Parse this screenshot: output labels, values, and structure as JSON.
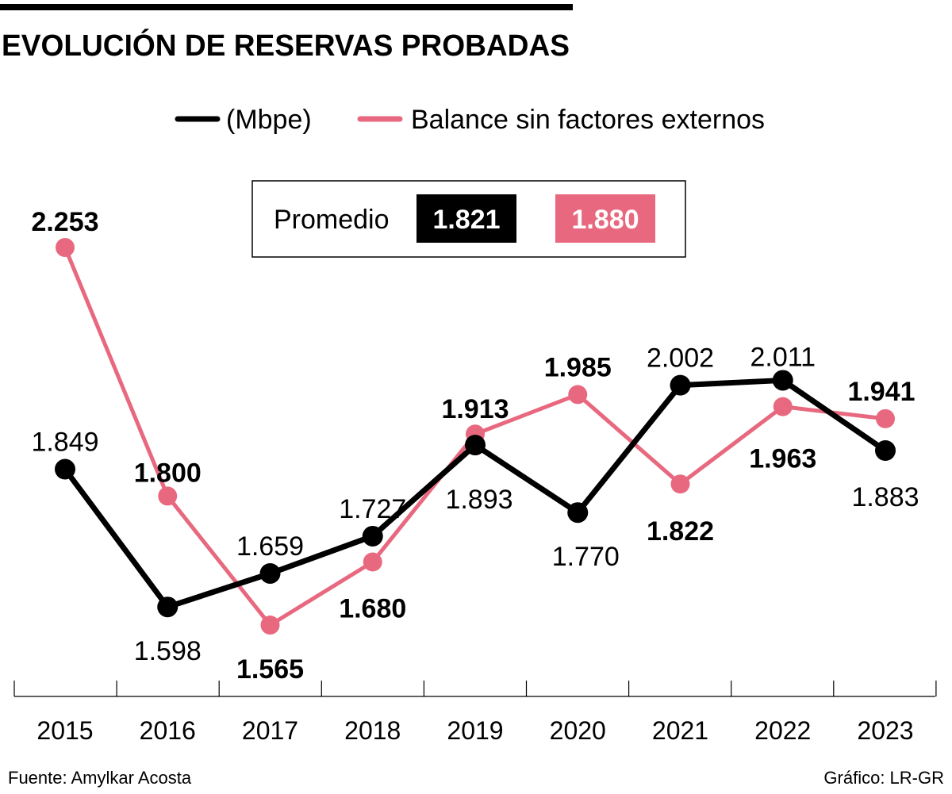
{
  "title": "EVOLUCIÓN DE RESERVAS PROBADAS",
  "legend": [
    {
      "label": "(Mbpe)",
      "color": "#000000"
    },
    {
      "label": "Balance sin factores externos",
      "color": "#e8697f"
    }
  ],
  "average": {
    "label": "Promedio",
    "values": [
      "1.821",
      "1.880"
    ]
  },
  "footer": {
    "source": "Fuente: Amylkar Acosta",
    "credit": "Gráfico: LR-GR"
  },
  "chart_data": {
    "type": "line",
    "title": "EVOLUCIÓN DE RESERVAS PROBADAS",
    "xlabel": "",
    "ylabel": "",
    "categories": [
      "2015",
      "2016",
      "2017",
      "2018",
      "2019",
      "2020",
      "2021",
      "2022",
      "2023"
    ],
    "grid": false,
    "legend_position": "top",
    "series": [
      {
        "name": "(Mbpe)",
        "color": "#000000",
        "values": [
          1.849,
          1.598,
          1.659,
          1.727,
          1.893,
          1.77,
          2.002,
          2.011,
          1.883
        ],
        "labels": [
          "1.849",
          "1.598",
          "1.659",
          "1.727",
          "1.893",
          "1.770",
          "2.002",
          "2.011",
          "1.883"
        ]
      },
      {
        "name": "Balance sin factores externos",
        "color": "#e8697f",
        "values": [
          2.253,
          1.8,
          1.565,
          1.68,
          1.913,
          1.985,
          1.822,
          1.963,
          1.941
        ],
        "labels": [
          "2.253",
          "1.800",
          "1.565",
          "1.680",
          "1.913",
          "1.985",
          "1.822",
          "1.963",
          "1.941"
        ]
      }
    ]
  }
}
